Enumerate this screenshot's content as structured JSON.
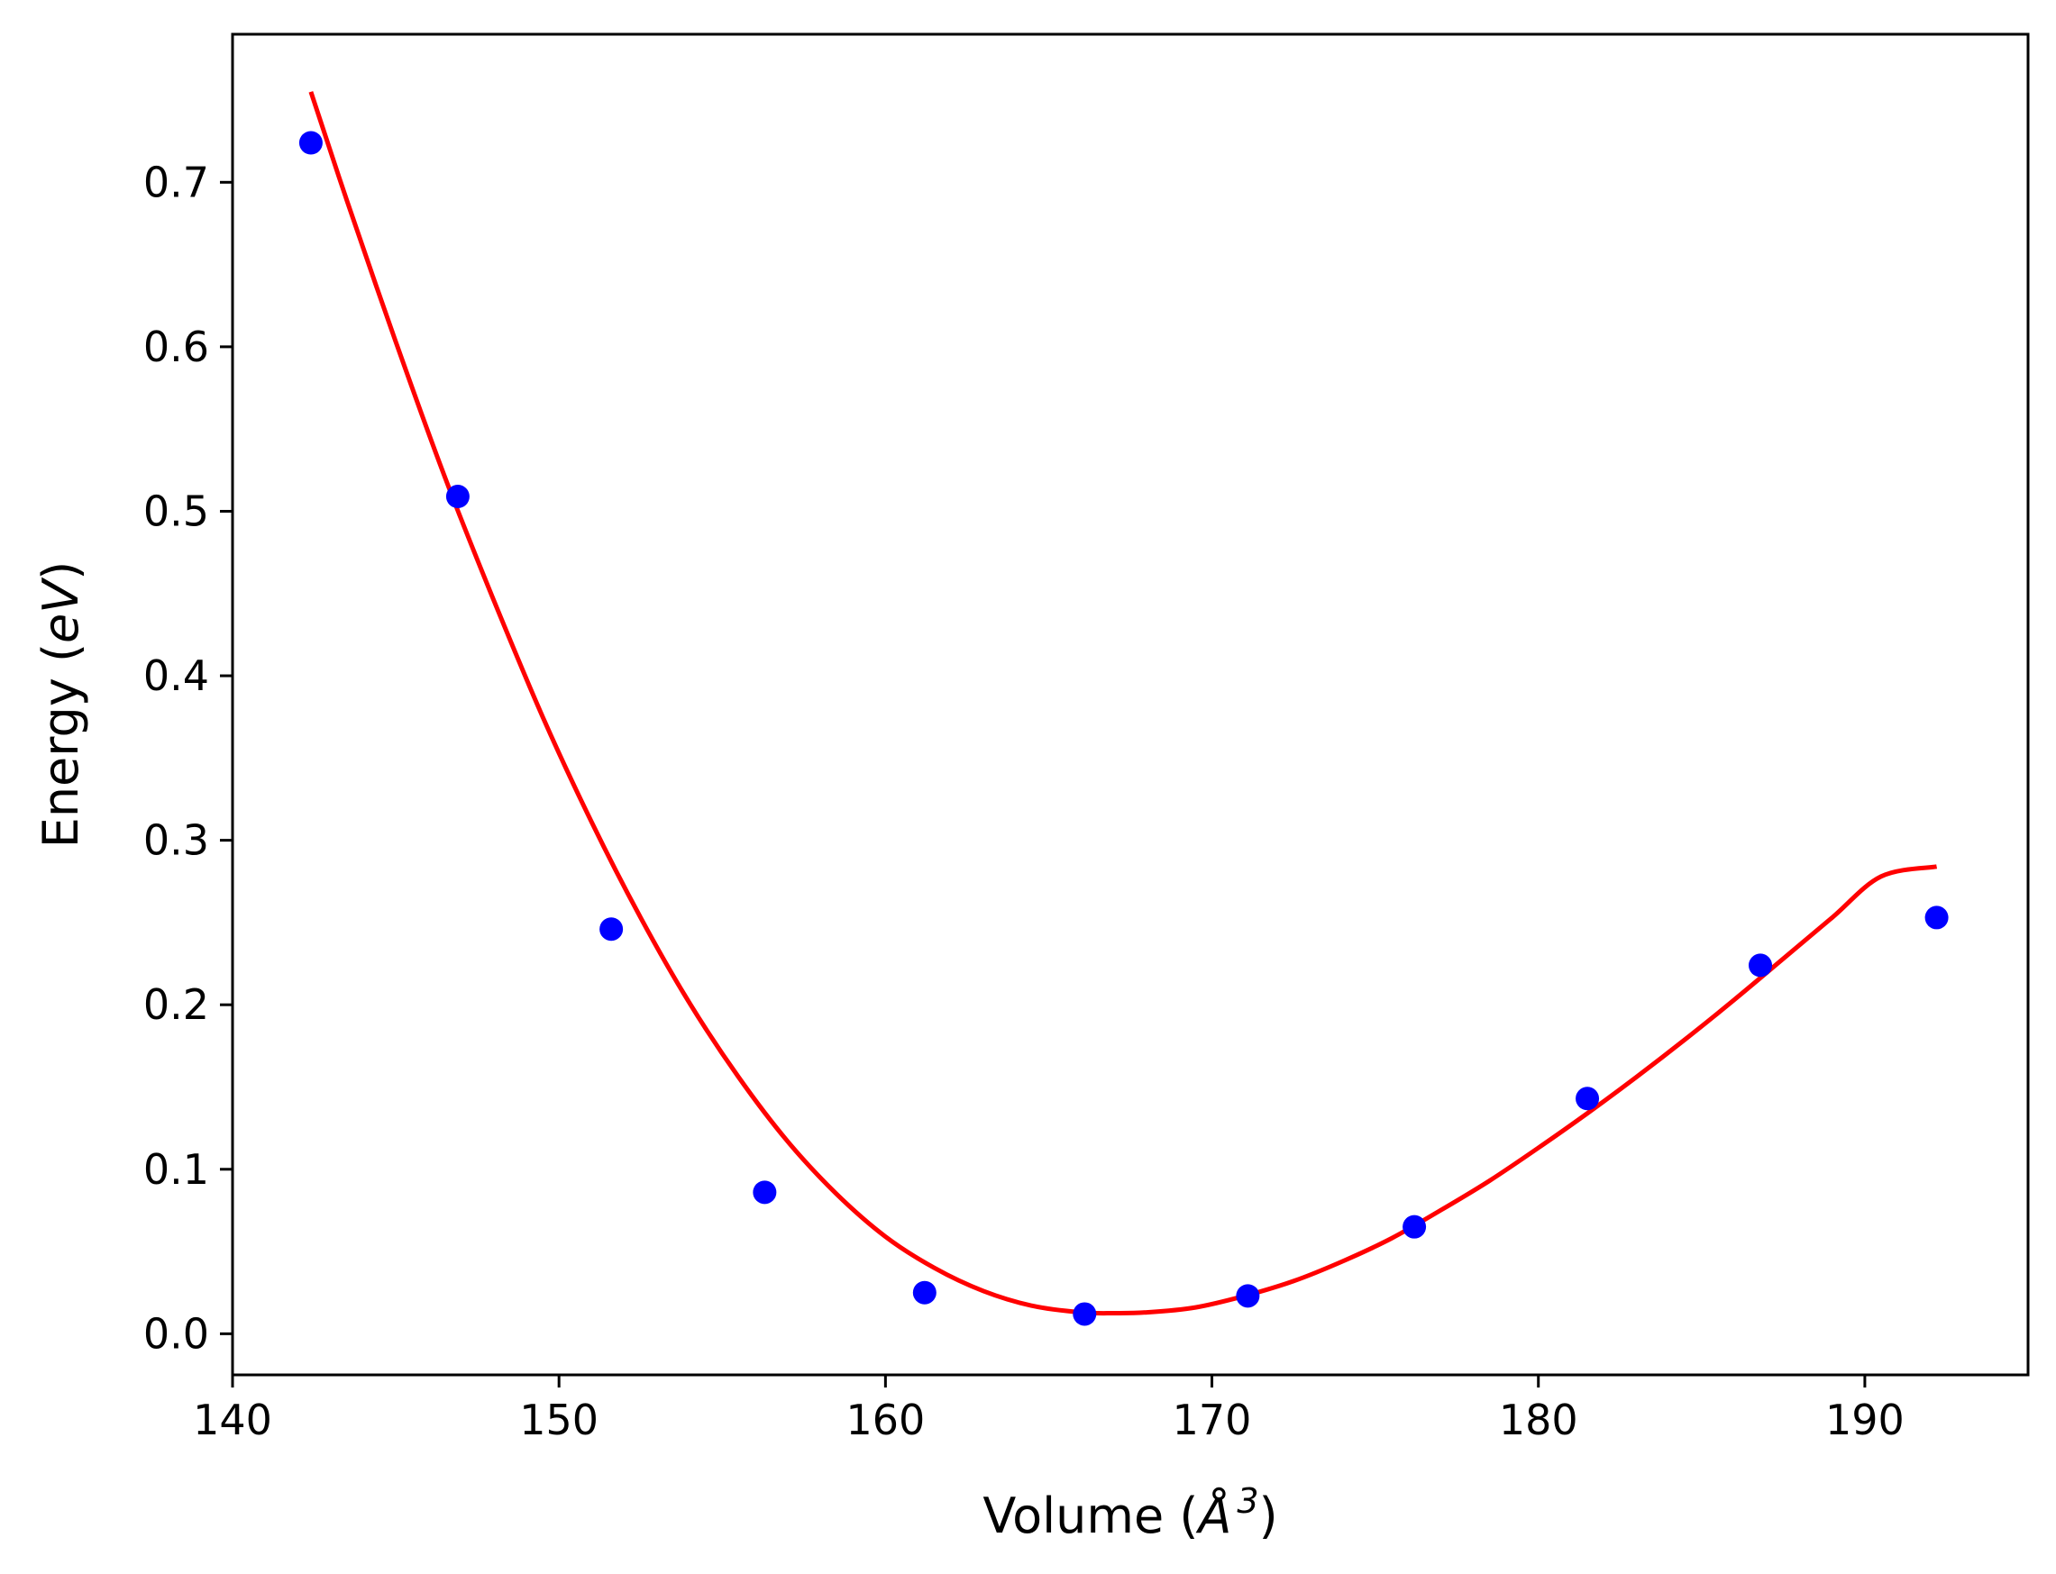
{
  "chart_data": {
    "type": "scatter",
    "title": "",
    "xlabel": "Volume",
    "xlabel_unit_prefix": "(",
    "xlabel_unit_symbol": "Å",
    "xlabel_unit_exponent": "3",
    "xlabel_unit_suffix": ")",
    "ylabel": "Energy",
    "ylabel_unit_prefix": "(",
    "ylabel_unit_symbol": "eV",
    "ylabel_unit_suffix": ")",
    "xlim": [
      140,
      195
    ],
    "ylim": [
      -0.025,
      0.79
    ],
    "xticks": [
      140,
      150,
      160,
      170,
      180,
      190
    ],
    "xtick_labels": [
      "140",
      "150",
      "160",
      "170",
      "180",
      "190"
    ],
    "yticks": [
      0.0,
      0.1,
      0.2,
      0.3,
      0.4,
      0.5,
      0.6,
      0.7
    ],
    "ytick_labels": [
      "0.0",
      "0.1",
      "0.2",
      "0.3",
      "0.4",
      "0.5",
      "0.6",
      "0.7"
    ],
    "grid": false,
    "series": [
      {
        "kind": "points",
        "color": "#0000ff",
        "points": [
          {
            "x": 142.4,
            "y": 0.724
          },
          {
            "x": 146.9,
            "y": 0.509
          },
          {
            "x": 151.6,
            "y": 0.246
          },
          {
            "x": 156.3,
            "y": 0.086
          },
          {
            "x": 161.2,
            "y": 0.025
          },
          {
            "x": 166.1,
            "y": 0.012
          },
          {
            "x": 171.1,
            "y": 0.023
          },
          {
            "x": 176.2,
            "y": 0.065
          },
          {
            "x": 181.5,
            "y": 0.143
          },
          {
            "x": 186.8,
            "y": 0.224
          },
          {
            "x": 192.2,
            "y": 0.253
          }
        ]
      },
      {
        "kind": "curve",
        "color": "#ff0000",
        "points": [
          {
            "x": 142.4,
            "y": 0.755
          },
          {
            "x": 143.5,
            "y": 0.689
          },
          {
            "x": 145.0,
            "y": 0.603
          },
          {
            "x": 146.5,
            "y": 0.521
          },
          {
            "x": 148.0,
            "y": 0.446
          },
          {
            "x": 149.5,
            "y": 0.375
          },
          {
            "x": 151.0,
            "y": 0.311
          },
          {
            "x": 152.5,
            "y": 0.253
          },
          {
            "x": 154.0,
            "y": 0.201
          },
          {
            "x": 155.5,
            "y": 0.156
          },
          {
            "x": 157.0,
            "y": 0.117
          },
          {
            "x": 158.5,
            "y": 0.085
          },
          {
            "x": 160.0,
            "y": 0.059
          },
          {
            "x": 161.5,
            "y": 0.04
          },
          {
            "x": 163.0,
            "y": 0.026
          },
          {
            "x": 164.5,
            "y": 0.017
          },
          {
            "x": 166.0,
            "y": 0.013
          },
          {
            "x": 167.0,
            "y": 0.0125
          },
          {
            "x": 168.0,
            "y": 0.013
          },
          {
            "x": 169.5,
            "y": 0.016
          },
          {
            "x": 171.0,
            "y": 0.023
          },
          {
            "x": 172.5,
            "y": 0.032
          },
          {
            "x": 174.0,
            "y": 0.044
          },
          {
            "x": 175.5,
            "y": 0.058
          },
          {
            "x": 177.0,
            "y": 0.075
          },
          {
            "x": 178.5,
            "y": 0.093
          },
          {
            "x": 180.0,
            "y": 0.113
          },
          {
            "x": 181.5,
            "y": 0.134
          },
          {
            "x": 183.0,
            "y": 0.156
          },
          {
            "x": 184.5,
            "y": 0.179
          },
          {
            "x": 186.0,
            "y": 0.203
          },
          {
            "x": 187.5,
            "y": 0.228
          },
          {
            "x": 189.0,
            "y": 0.253
          },
          {
            "x": 190.5,
            "y": 0.278
          },
          {
            "x": 192.2,
            "y": 0.284
          }
        ]
      }
    ]
  }
}
